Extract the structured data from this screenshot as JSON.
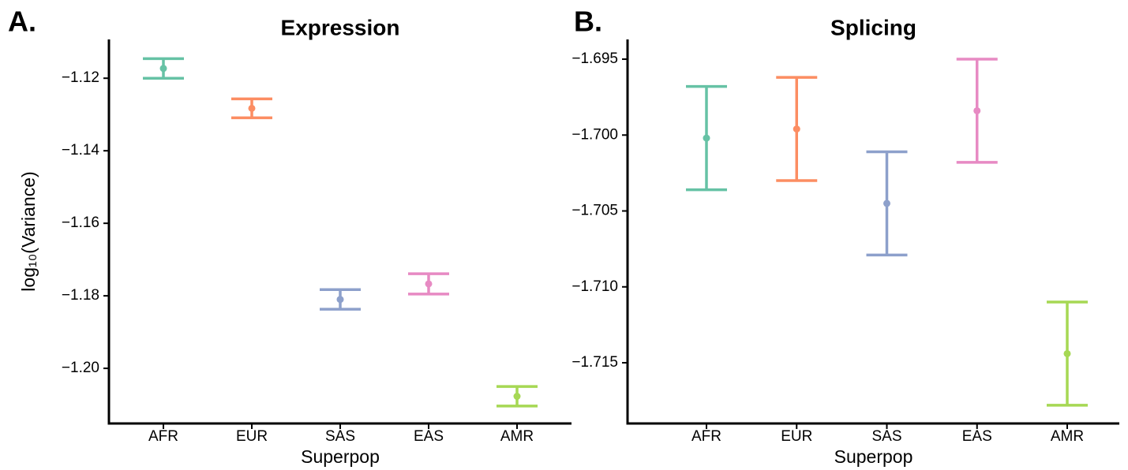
{
  "chart_data": [
    {
      "type": "errorbar",
      "panel_label": "A.",
      "title": "Expression",
      "x_label": "Superpop",
      "y_label": "log₁₀(Variance)",
      "categories": [
        "AFR",
        "EUR",
        "SAS",
        "EAS",
        "AMR"
      ],
      "values": [
        -1.1173,
        -1.1283,
        -1.181,
        -1.1767,
        -1.2077
      ],
      "errors": [
        0.0027,
        0.0026,
        0.0027,
        0.0028,
        0.0027
      ],
      "colors": [
        "#66c2a5",
        "#fc8d62",
        "#8da0cb",
        "#e78ac3",
        "#a6d854"
      ],
      "ylim": [
        -1.2152,
        -1.1093
      ],
      "yticks": [
        {
          "value": -1.12,
          "label": "−1.12"
        },
        {
          "value": -1.14,
          "label": "−1.14"
        },
        {
          "value": -1.16,
          "label": "−1.16"
        },
        {
          "value": -1.18,
          "label": "−1.18"
        },
        {
          "value": -1.2,
          "label": "−1.20"
        }
      ]
    },
    {
      "type": "errorbar",
      "panel_label": "B.",
      "title": "Splicing",
      "x_label": "Superpop",
      "categories": [
        "AFR",
        "EUR",
        "SAS",
        "EAS",
        "AMR"
      ],
      "values": [
        -1.7002,
        -1.6996,
        -1.7045,
        -1.6984,
        -1.7144
      ],
      "errors": [
        0.0034,
        0.0034,
        0.0034,
        0.0034,
        0.0034
      ],
      "colors": [
        "#66c2a5",
        "#fc8d62",
        "#8da0cb",
        "#e78ac3",
        "#a6d854"
      ],
      "ylim": [
        -1.719,
        -1.6937
      ],
      "yticks": [
        {
          "value": -1.695,
          "label": "−1.695"
        },
        {
          "value": -1.7,
          "label": "−1.700"
        },
        {
          "value": -1.705,
          "label": "−1.705"
        },
        {
          "value": -1.71,
          "label": "−1.710"
        },
        {
          "value": -1.715,
          "label": "−1.715"
        }
      ]
    }
  ]
}
